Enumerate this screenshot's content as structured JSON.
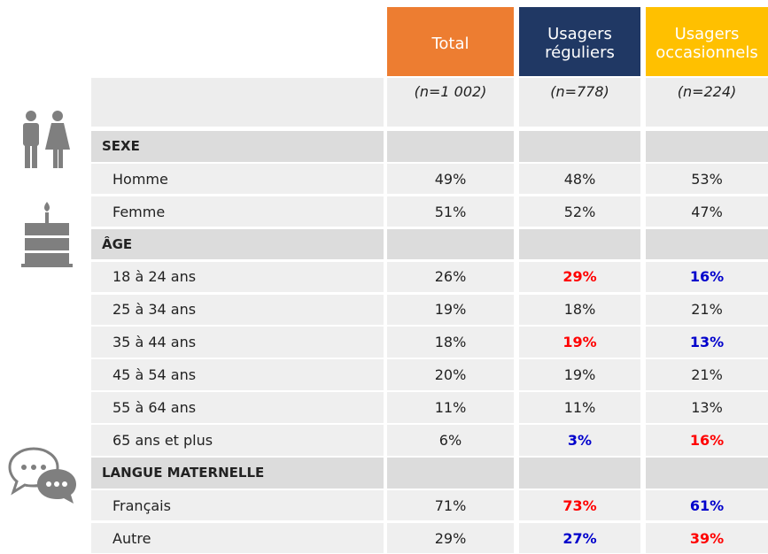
{
  "table": {
    "headers": [
      {
        "text": "Total",
        "color": "#ED7D31"
      },
      {
        "text": "Usagers réguliers",
        "color": "#203864"
      },
      {
        "text": "Usagers occasionnels",
        "color": "#FFC000"
      }
    ],
    "samples": [
      "(n=1 002)",
      "(n=778)",
      "(n=224)"
    ],
    "rows": [
      {
        "label": "SEXE",
        "section": true
      },
      {
        "label": "Homme",
        "cells": [
          {
            "text": "49%"
          },
          {
            "text": "48%"
          },
          {
            "text": "53%"
          }
        ]
      },
      {
        "label": "Femme",
        "cells": [
          {
            "text": "51%"
          },
          {
            "text": "52%"
          },
          {
            "text": "47%"
          }
        ]
      },
      {
        "label": "ÂGE",
        "section": true
      },
      {
        "label": "18 à 24 ans",
        "cells": [
          {
            "text": "26%"
          },
          {
            "text": "29%",
            "color": "#FF0000"
          },
          {
            "text": "16%",
            "color": "#0000CC"
          }
        ]
      },
      {
        "label": "25 à 34 ans",
        "cells": [
          {
            "text": "19%"
          },
          {
            "text": "18%"
          },
          {
            "text": "21%"
          }
        ]
      },
      {
        "label": "35 à 44 ans",
        "cells": [
          {
            "text": "18%"
          },
          {
            "text": "19%",
            "color": "#FF0000"
          },
          {
            "text": "13%",
            "color": "#0000CC"
          }
        ]
      },
      {
        "label": "45 à 54 ans",
        "cells": [
          {
            "text": "20%"
          },
          {
            "text": "19%"
          },
          {
            "text": "21%"
          }
        ]
      },
      {
        "label": "55 à 64 ans",
        "cells": [
          {
            "text": "11%"
          },
          {
            "text": "11%"
          },
          {
            "text": "13%"
          }
        ]
      },
      {
        "label": "65 ans et plus",
        "cells": [
          {
            "text": "6%"
          },
          {
            "text": "3%",
            "color": "#0000CC"
          },
          {
            "text": "16%",
            "color": "#FF0000"
          }
        ]
      },
      {
        "label": "LANGUE MATERNELLE",
        "section": true
      },
      {
        "label": "Français",
        "cells": [
          {
            "text": "71%"
          },
          {
            "text": "73%",
            "color": "#FF0000"
          },
          {
            "text": "61%",
            "color": "#0000CC"
          }
        ]
      },
      {
        "label": "Autre",
        "cells": [
          {
            "text": "29%"
          },
          {
            "text": "27%",
            "color": "#0000CC"
          },
          {
            "text": "39%",
            "color": "#FF0000"
          }
        ]
      }
    ]
  }
}
